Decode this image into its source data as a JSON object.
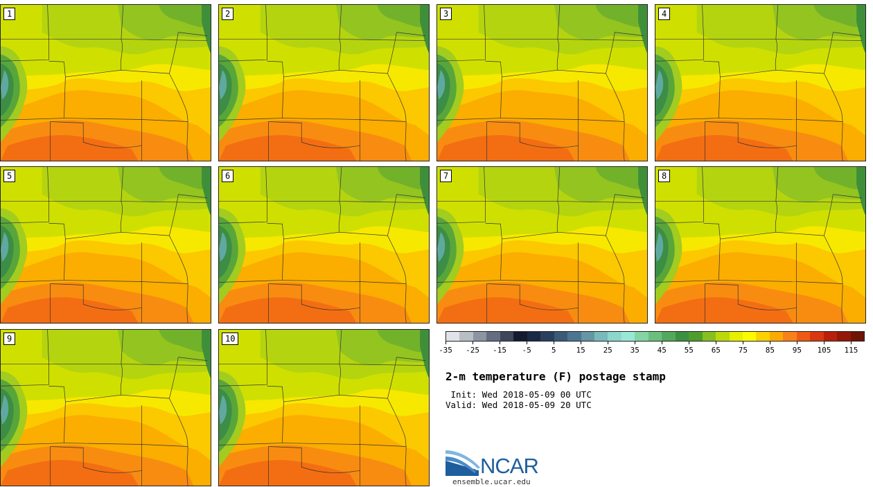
{
  "panels": [
    {
      "label": "1"
    },
    {
      "label": "2"
    },
    {
      "label": "3"
    },
    {
      "label": "4"
    },
    {
      "label": "5"
    },
    {
      "label": "6"
    },
    {
      "label": "7"
    },
    {
      "label": "8"
    },
    {
      "label": "9"
    },
    {
      "label": "10"
    }
  ],
  "colorbar": {
    "colors": [
      "#dfe3e8",
      "#b9bec6",
      "#8d95a3",
      "#656d80",
      "#3e475c",
      "#141b30",
      "#1a2a45",
      "#28405e",
      "#3a5b78",
      "#4c7690",
      "#6496a5",
      "#7ab9bb",
      "#8dd6cb",
      "#99e8d5",
      "#85d4a6",
      "#6bbf7e",
      "#54a85d",
      "#3c9140",
      "#4f9d2c",
      "#86bf1f",
      "#bcd80d",
      "#e7ee00",
      "#fbfb00",
      "#fbd100",
      "#fbaa00",
      "#f8821a",
      "#ee5a14",
      "#d8380e",
      "#b8200c",
      "#941708",
      "#6e1405"
    ],
    "tick_labels": [
      "-35",
      "-25",
      "-15",
      "-5",
      "5",
      "15",
      "25",
      "35",
      "45",
      "55",
      "65",
      "75",
      "85",
      "95",
      "105",
      "115"
    ]
  },
  "title": "2-m temperature (F) postage stamp",
  "init": " Init: Wed 2018-05-09 00 UTC",
  "valid": "Valid: Wed 2018-05-09 20 UTC",
  "logo": {
    "text": "NCAR",
    "site": "ensemble.ucar.edu"
  }
}
